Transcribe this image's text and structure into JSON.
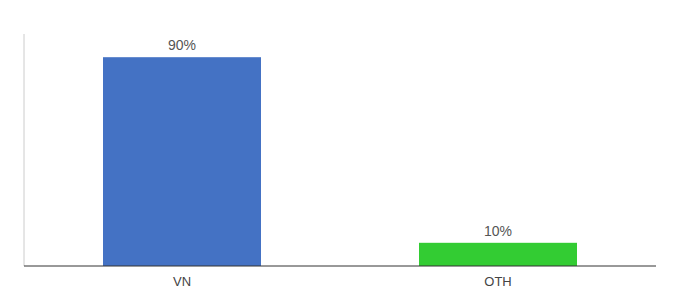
{
  "chart_data": {
    "type": "bar",
    "categories": [
      "VN",
      "OTH"
    ],
    "values": [
      90,
      10
    ],
    "value_labels": [
      "90%",
      "10%"
    ],
    "colors": [
      "#4472c4",
      "#33cc33"
    ],
    "ylim": [
      0,
      100
    ],
    "data_labels": true,
    "tick_labels": "x",
    "grid": false
  }
}
